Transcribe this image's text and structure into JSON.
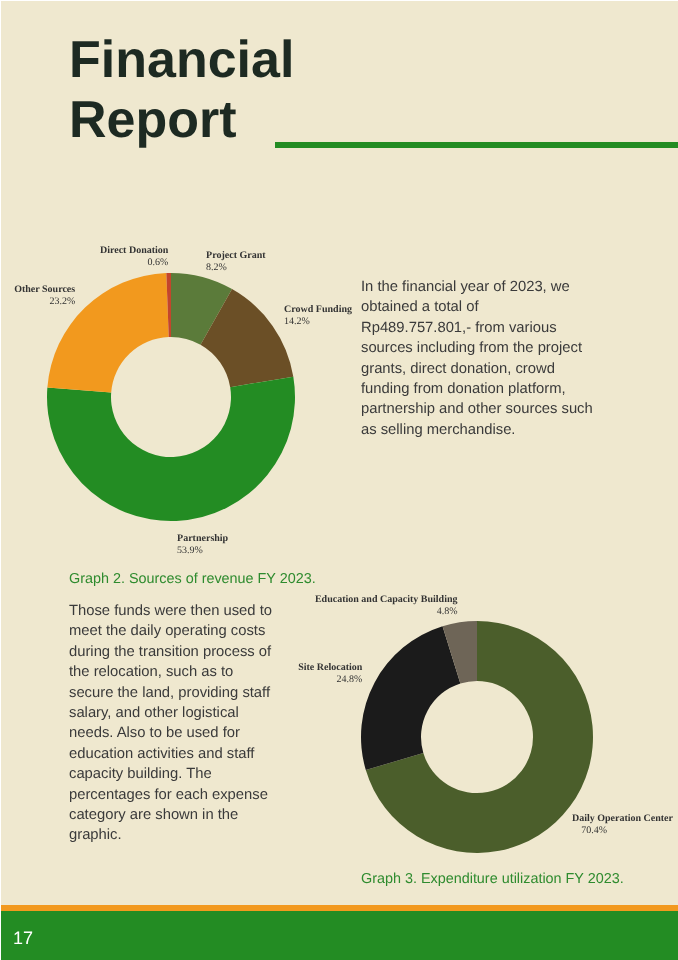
{
  "chart_data": [
    {
      "type": "donut",
      "title": "Financial Report",
      "categories": [
        "Project Grant",
        "Crowd Funding",
        "Partnership",
        "Other Sources",
        "Direct Donation"
      ],
      "values": [
        8.2,
        14.2,
        53.9,
        23.2,
        0.6
      ],
      "value_labels": [
        "8.2%",
        "14.2%",
        "53.9%",
        "23.2%",
        "0.6%"
      ],
      "colors": [
        "#5b7b3a",
        "#6b4f26",
        "#238c23",
        "#f2991e",
        "#c4452c"
      ],
      "annotations": [
        "Graph 2. Sources of revenue FY 2023.",
        "In the financial year of 2023, we obtained a total of Rp489.757.801,- from various sources including from the project grants, direct donation, crowd funding from donation platform, partnership and other sources such as selling merchandise.",
        "17"
      ]
    },
    {
      "type": "donut",
      "categories": [
        "Daily Operation Center",
        "Site Relocation",
        "Education and Capacity Building"
      ],
      "values": [
        70.4,
        24.8,
        4.8
      ],
      "value_labels": [
        "70.4%",
        "24.8%",
        "4.8%"
      ],
      "colors": [
        "#4b5e2b",
        "#1b1b1b",
        "#6e6557"
      ],
      "annotations": [
        "Graph 3. Expenditure utilization FY 2023.",
        "Those funds were then used to meet the daily operating costs during the transition process of the relocation, such as to secure the land, providing staff salary, and other logistical needs. Also to be used for education activities and staff capacity building. The percentages for each expense category are shown in the graphic."
      ]
    }
  ]
}
